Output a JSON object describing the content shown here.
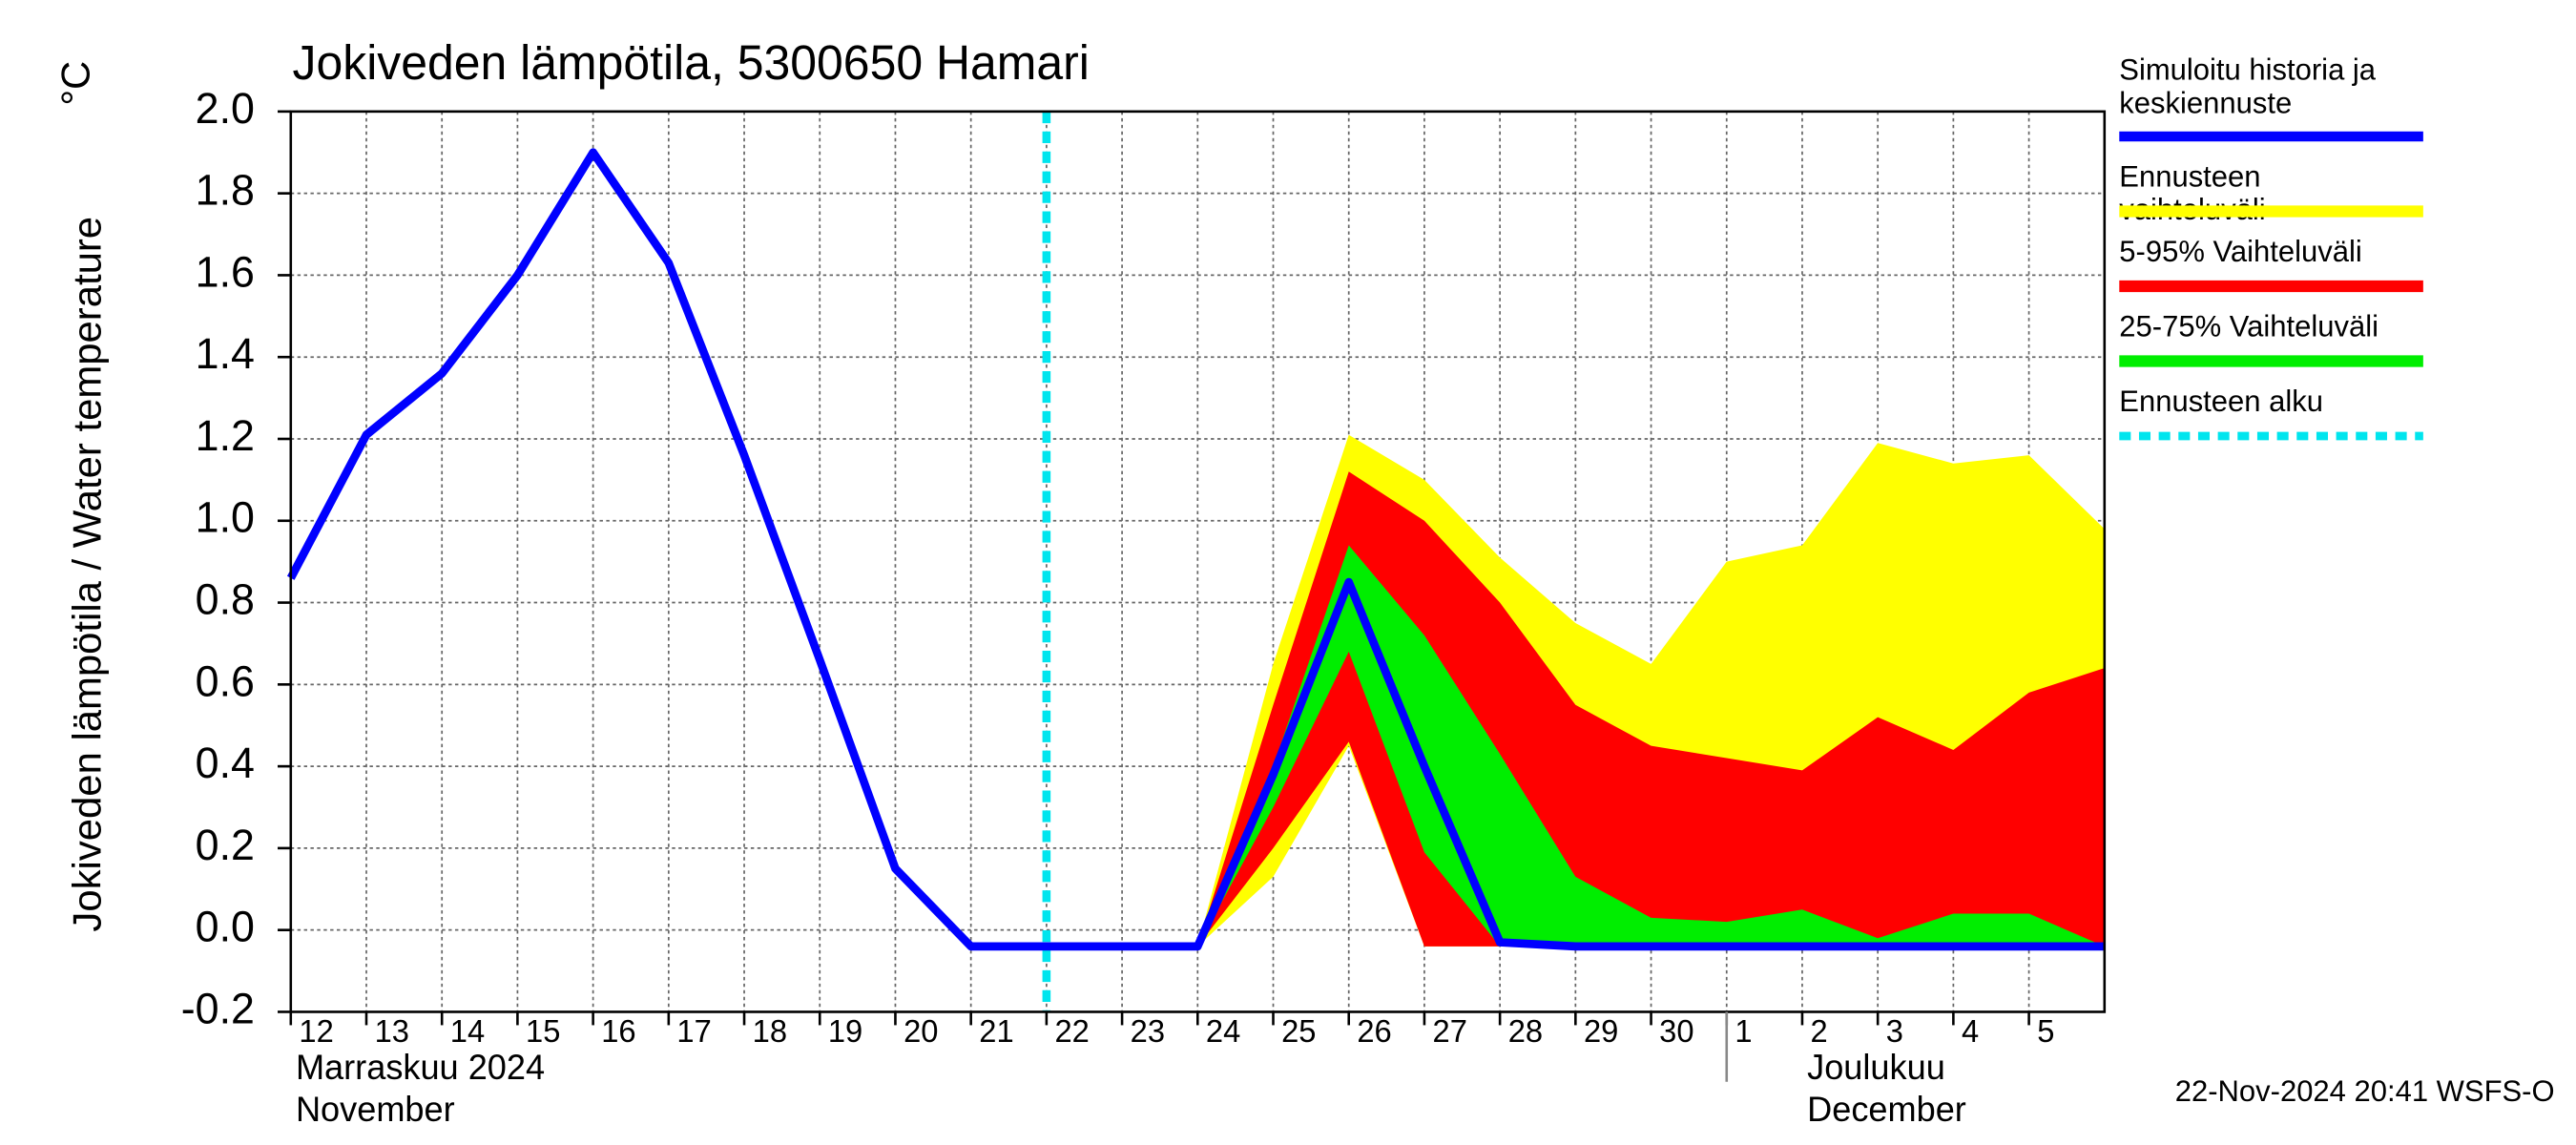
{
  "chart_data": {
    "type": "line",
    "title": "Jokiveden lämpötila, 5300650 Hamari",
    "y_label": "Jokiveden lämpötila / Water temperature",
    "y_unit": "°C",
    "xlim": [
      "2024-11-12",
      "2024-12-06"
    ],
    "xticks": [
      {
        "value": "2024-11-12",
        "label": "12"
      },
      {
        "value": "2024-11-13",
        "label": "13"
      },
      {
        "value": "2024-11-14",
        "label": "14"
      },
      {
        "value": "2024-11-15",
        "label": "15"
      },
      {
        "value": "2024-11-16",
        "label": "16"
      },
      {
        "value": "2024-11-17",
        "label": "17"
      },
      {
        "value": "2024-11-18",
        "label": "18"
      },
      {
        "value": "2024-11-19",
        "label": "19"
      },
      {
        "value": "2024-11-20",
        "label": "20"
      },
      {
        "value": "2024-11-21",
        "label": "21"
      },
      {
        "value": "2024-11-22",
        "label": "22"
      },
      {
        "value": "2024-11-23",
        "label": "23"
      },
      {
        "value": "2024-11-24",
        "label": "24"
      },
      {
        "value": "2024-11-25",
        "label": "25"
      },
      {
        "value": "2024-11-26",
        "label": "26"
      },
      {
        "value": "2024-11-27",
        "label": "27"
      },
      {
        "value": "2024-11-28",
        "label": "28"
      },
      {
        "value": "2024-11-29",
        "label": "29"
      },
      {
        "value": "2024-11-30",
        "label": "30"
      },
      {
        "value": "2024-12-01",
        "label": "1"
      },
      {
        "value": "2024-12-02",
        "label": "2"
      },
      {
        "value": "2024-12-03",
        "label": "3"
      },
      {
        "value": "2024-12-04",
        "label": "4"
      },
      {
        "value": "2024-12-05",
        "label": "5"
      }
    ],
    "month_labels": [
      {
        "fi": "Marraskuu 2024",
        "en": "November"
      },
      {
        "fi": "Joulukuu",
        "en": "December"
      }
    ],
    "ylim": [
      -0.2,
      2.0
    ],
    "yticks": [
      -0.2,
      {
        "value": 0.0,
        "label": "0.0"
      },
      0.2,
      0.4,
      0.6,
      0.8,
      {
        "value": 1.0,
        "label": "1.0"
      },
      1.2,
      1.4,
      1.6,
      1.8,
      {
        "value": 2.0,
        "label": "2.0"
      }
    ],
    "grid": true,
    "x": [
      "2024-11-12",
      "2024-11-13",
      "2024-11-14",
      "2024-11-15",
      "2024-11-16",
      "2024-11-17",
      "2024-11-18",
      "2024-11-19",
      "2024-11-20",
      "2024-11-21",
      "2024-11-22",
      "2024-11-23",
      "2024-11-24",
      "2024-11-25",
      "2024-11-26",
      "2024-11-27",
      "2024-11-28",
      "2024-11-29",
      "2024-11-30",
      "2024-12-01",
      "2024-12-02",
      "2024-12-03",
      "2024-12-04",
      "2024-12-05",
      "2024-12-06"
    ],
    "series": [
      {
        "name": "Simuloitu historia ja keskiennuste",
        "color": "#0000ff",
        "values": [
          0.86,
          1.21,
          1.36,
          1.6,
          1.9,
          1.63,
          1.16,
          0.66,
          0.15,
          -0.04,
          -0.04,
          -0.04,
          -0.04,
          0.38,
          0.85,
          0.4,
          -0.03,
          -0.04,
          -0.04,
          -0.04,
          -0.04,
          -0.04,
          -0.04,
          -0.04,
          -0.04
        ]
      }
    ],
    "bands": [
      {
        "name": "Ennusteen vaihteluväli",
        "color": "#ffff00",
        "x": [
          "2024-11-24",
          "2024-11-25",
          "2024-11-26",
          "2024-11-27",
          "2024-11-28",
          "2024-11-29",
          "2024-11-30",
          "2024-12-01",
          "2024-12-02",
          "2024-12-03",
          "2024-12-04",
          "2024-12-05",
          "2024-12-06"
        ],
        "upper": [
          -0.04,
          0.65,
          1.21,
          1.1,
          0.91,
          0.75,
          0.65,
          0.9,
          0.94,
          1.19,
          1.14,
          1.16,
          0.98
        ],
        "lower": [
          -0.04,
          0.13,
          0.45,
          -0.04,
          -0.04,
          -0.04,
          -0.04,
          -0.04,
          -0.04,
          -0.04,
          -0.04,
          -0.04,
          -0.04
        ]
      },
      {
        "name": "5-95% Vaihteluväli",
        "color": "#ff0000",
        "x": [
          "2024-11-24",
          "2024-11-25",
          "2024-11-26",
          "2024-11-27",
          "2024-11-28",
          "2024-11-29",
          "2024-11-30",
          "2024-12-01",
          "2024-12-02",
          "2024-12-03",
          "2024-12-04",
          "2024-12-05",
          "2024-12-06"
        ],
        "upper": [
          -0.04,
          0.55,
          1.12,
          1.0,
          0.8,
          0.55,
          0.45,
          0.42,
          0.39,
          0.52,
          0.44,
          0.58,
          0.64
        ],
        "lower": [
          -0.04,
          0.2,
          0.46,
          -0.04,
          -0.04,
          -0.04,
          -0.04,
          -0.04,
          -0.04,
          -0.04,
          -0.04,
          -0.04,
          -0.04
        ]
      },
      {
        "name": "25-75% Vaihteluväli",
        "color": "#00ee00",
        "x": [
          "2024-11-24",
          "2024-11-25",
          "2024-11-26",
          "2024-11-27",
          "2024-11-28",
          "2024-11-29",
          "2024-11-30",
          "2024-12-01",
          "2024-12-02",
          "2024-12-03",
          "2024-12-04",
          "2024-12-05",
          "2024-12-06"
        ],
        "upper": [
          -0.04,
          0.4,
          0.94,
          0.72,
          0.43,
          0.13,
          0.03,
          0.02,
          0.05,
          -0.02,
          0.04,
          0.04,
          -0.04
        ],
        "lower": [
          -0.04,
          0.3,
          0.68,
          0.19,
          -0.04,
          -0.04,
          -0.04,
          -0.04,
          -0.04,
          -0.04,
          -0.04,
          -0.04,
          -0.04
        ]
      }
    ],
    "forecast_start": {
      "name": "Ennusteen alku",
      "x": "2024-11-22",
      "color": "#00e5ee"
    },
    "timestamp": "22-Nov-2024 20:41 WSFS-O"
  }
}
